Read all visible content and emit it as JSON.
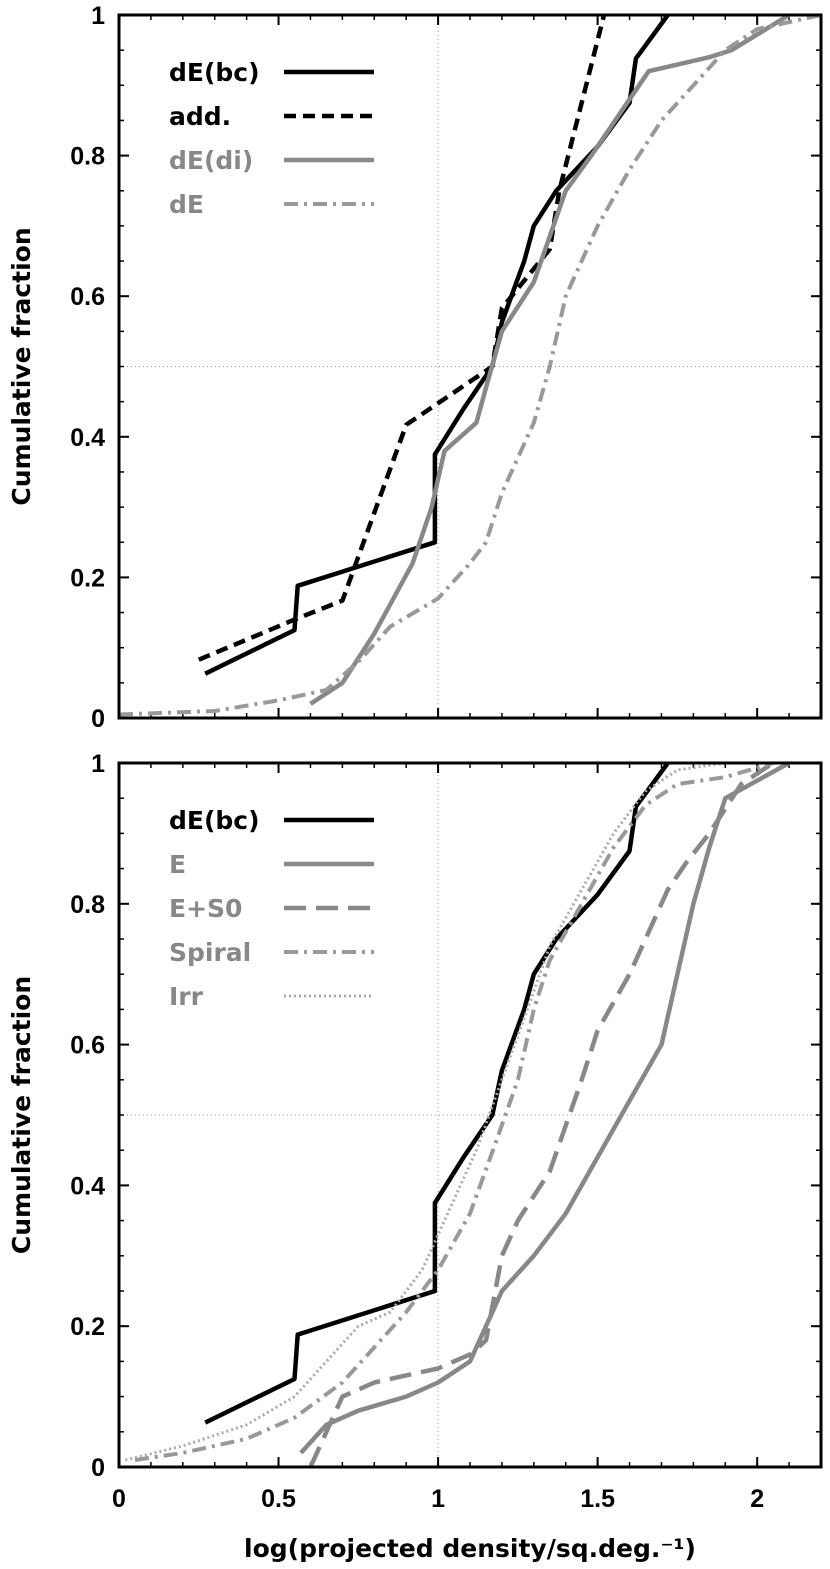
{
  "chart_data": [
    {
      "type": "line",
      "title": "",
      "xlabel": "log(projected density/sq.deg.⁻¹)",
      "ylabel": "Cumulative fraction",
      "xlim": [
        0,
        2.2
      ],
      "ylim": [
        0,
        1
      ],
      "x_ticks": [
        "0",
        "0.5",
        "1",
        "1.5",
        "2"
      ],
      "y_ticks": [
        "0",
        "0.2",
        "0.4",
        "0.6",
        "0.8",
        "1"
      ],
      "reference_lines": {
        "x": 1,
        "y": 0.5,
        "style": "dotted"
      },
      "legend_position": "top-left",
      "series": [
        {
          "name": "dE(bc)",
          "color": "#000000",
          "style": "solid",
          "points": [
            [
              0.27,
              0.063
            ],
            [
              0.55,
              0.125
            ],
            [
              0.56,
              0.188
            ],
            [
              0.99,
              0.25
            ],
            [
              0.99,
              0.375
            ],
            [
              1.08,
              0.44
            ],
            [
              1.17,
              0.5
            ],
            [
              1.2,
              0.563
            ],
            [
              1.27,
              0.65
            ],
            [
              1.3,
              0.7
            ],
            [
              1.37,
              0.75
            ],
            [
              1.5,
              0.813
            ],
            [
              1.6,
              0.875
            ],
            [
              1.62,
              0.938
            ],
            [
              1.72,
              1.0
            ]
          ]
        },
        {
          "name": "add.",
          "color": "#000000",
          "style": "dashed",
          "points": [
            [
              0.25,
              0.083
            ],
            [
              0.55,
              0.14
            ],
            [
              0.7,
              0.167
            ],
            [
              0.9,
              0.417
            ],
            [
              1.17,
              0.5
            ],
            [
              1.2,
              0.583
            ],
            [
              1.35,
              0.667
            ],
            [
              1.38,
              0.75
            ],
            [
              1.52,
              1.0
            ]
          ]
        },
        {
          "name": "dE(di)",
          "color": "#888888",
          "style": "solid",
          "points": [
            [
              0.6,
              0.02
            ],
            [
              0.7,
              0.05
            ],
            [
              0.8,
              0.12
            ],
            [
              0.92,
              0.22
            ],
            [
              0.98,
              0.3
            ],
            [
              1.02,
              0.38
            ],
            [
              1.12,
              0.42
            ],
            [
              1.15,
              0.47
            ],
            [
              1.2,
              0.55
            ],
            [
              1.3,
              0.62
            ],
            [
              1.4,
              0.75
            ],
            [
              1.48,
              0.8
            ],
            [
              1.6,
              0.88
            ],
            [
              1.66,
              0.92
            ],
            [
              1.85,
              0.94
            ],
            [
              1.92,
              0.95
            ],
            [
              2.1,
              1.0
            ]
          ]
        },
        {
          "name": "dE",
          "color": "#999999",
          "style": "dashdot",
          "points": [
            [
              0.0,
              0.005
            ],
            [
              0.3,
              0.01
            ],
            [
              0.5,
              0.025
            ],
            [
              0.65,
              0.04
            ],
            [
              0.75,
              0.08
            ],
            [
              0.85,
              0.13
            ],
            [
              1.0,
              0.17
            ],
            [
              1.1,
              0.22
            ],
            [
              1.15,
              0.25
            ],
            [
              1.2,
              0.32
            ],
            [
              1.3,
              0.42
            ],
            [
              1.35,
              0.5
            ],
            [
              1.4,
              0.6
            ],
            [
              1.5,
              0.7
            ],
            [
              1.6,
              0.78
            ],
            [
              1.7,
              0.85
            ],
            [
              1.8,
              0.9
            ],
            [
              1.9,
              0.95
            ],
            [
              2.0,
              0.98
            ],
            [
              2.2,
              1.0
            ]
          ]
        }
      ]
    },
    {
      "type": "line",
      "title": "",
      "xlabel": "log(projected density/sq.deg.⁻¹)",
      "ylabel": "Cumulative fraction",
      "xlim": [
        0,
        2.2
      ],
      "ylim": [
        0,
        1
      ],
      "x_ticks": [
        "0",
        "0.5",
        "1",
        "1.5",
        "2"
      ],
      "y_ticks": [
        "0",
        "0.2",
        "0.4",
        "0.6",
        "0.8",
        "1"
      ],
      "reference_lines": {
        "x": 1,
        "y": 0.5,
        "style": "dotted"
      },
      "legend_position": "top-left",
      "series": [
        {
          "name": "dE(bc)",
          "color": "#000000",
          "style": "solid",
          "points": [
            [
              0.27,
              0.063
            ],
            [
              0.55,
              0.125
            ],
            [
              0.56,
              0.188
            ],
            [
              0.99,
              0.25
            ],
            [
              0.99,
              0.375
            ],
            [
              1.08,
              0.44
            ],
            [
              1.17,
              0.5
            ],
            [
              1.2,
              0.563
            ],
            [
              1.27,
              0.65
            ],
            [
              1.3,
              0.7
            ],
            [
              1.37,
              0.75
            ],
            [
              1.5,
              0.813
            ],
            [
              1.6,
              0.875
            ],
            [
              1.62,
              0.938
            ],
            [
              1.72,
              1.0
            ]
          ]
        },
        {
          "name": "E",
          "color": "#888888",
          "style": "solid",
          "points": [
            [
              0.57,
              0.02
            ],
            [
              0.65,
              0.06
            ],
            [
              0.75,
              0.08
            ],
            [
              0.9,
              0.1
            ],
            [
              1.0,
              0.12
            ],
            [
              1.1,
              0.15
            ],
            [
              1.15,
              0.2
            ],
            [
              1.2,
              0.25
            ],
            [
              1.3,
              0.3
            ],
            [
              1.4,
              0.36
            ],
            [
              1.5,
              0.44
            ],
            [
              1.6,
              0.52
            ],
            [
              1.65,
              0.56
            ],
            [
              1.7,
              0.6
            ],
            [
              1.75,
              0.7
            ],
            [
              1.8,
              0.8
            ],
            [
              1.85,
              0.88
            ],
            [
              1.9,
              0.95
            ],
            [
              2.1,
              1.0
            ]
          ]
        },
        {
          "name": "E+S0",
          "color": "#888888",
          "style": "longdash",
          "points": [
            [
              0.6,
              0.0
            ],
            [
              0.65,
              0.05
            ],
            [
              0.7,
              0.1
            ],
            [
              0.8,
              0.12
            ],
            [
              1.0,
              0.14
            ],
            [
              1.1,
              0.16
            ],
            [
              1.15,
              0.18
            ],
            [
              1.2,
              0.3
            ],
            [
              1.25,
              0.35
            ],
            [
              1.35,
              0.42
            ],
            [
              1.45,
              0.55
            ],
            [
              1.5,
              0.62
            ],
            [
              1.6,
              0.7
            ],
            [
              1.65,
              0.75
            ],
            [
              1.72,
              0.82
            ],
            [
              1.78,
              0.86
            ],
            [
              1.85,
              0.9
            ],
            [
              1.95,
              0.97
            ],
            [
              2.05,
              1.0
            ]
          ]
        },
        {
          "name": "Spiral",
          "color": "#999999",
          "style": "dashdot",
          "points": [
            [
              0.05,
              0.01
            ],
            [
              0.2,
              0.02
            ],
            [
              0.4,
              0.04
            ],
            [
              0.55,
              0.07
            ],
            [
              0.7,
              0.12
            ],
            [
              0.8,
              0.17
            ],
            [
              0.9,
              0.22
            ],
            [
              1.0,
              0.28
            ],
            [
              1.1,
              0.36
            ],
            [
              1.18,
              0.46
            ],
            [
              1.25,
              0.55
            ],
            [
              1.3,
              0.65
            ],
            [
              1.35,
              0.72
            ],
            [
              1.45,
              0.8
            ],
            [
              1.55,
              0.88
            ],
            [
              1.65,
              0.94
            ],
            [
              1.75,
              0.97
            ],
            [
              1.9,
              0.98
            ],
            [
              2.05,
              1.0
            ]
          ]
        },
        {
          "name": "Irr",
          "color": "#aaaaaa",
          "style": "dotted",
          "points": [
            [
              0.02,
              0.01
            ],
            [
              0.2,
              0.03
            ],
            [
              0.4,
              0.06
            ],
            [
              0.55,
              0.1
            ],
            [
              0.65,
              0.15
            ],
            [
              0.75,
              0.2
            ],
            [
              0.85,
              0.22
            ],
            [
              0.95,
              0.28
            ],
            [
              1.0,
              0.33
            ],
            [
              1.05,
              0.38
            ],
            [
              1.12,
              0.45
            ],
            [
              1.2,
              0.55
            ],
            [
              1.28,
              0.65
            ],
            [
              1.35,
              0.74
            ],
            [
              1.45,
              0.82
            ],
            [
              1.55,
              0.9
            ],
            [
              1.65,
              0.96
            ],
            [
              1.75,
              0.99
            ],
            [
              1.9,
              1.0
            ]
          ]
        }
      ]
    }
  ]
}
